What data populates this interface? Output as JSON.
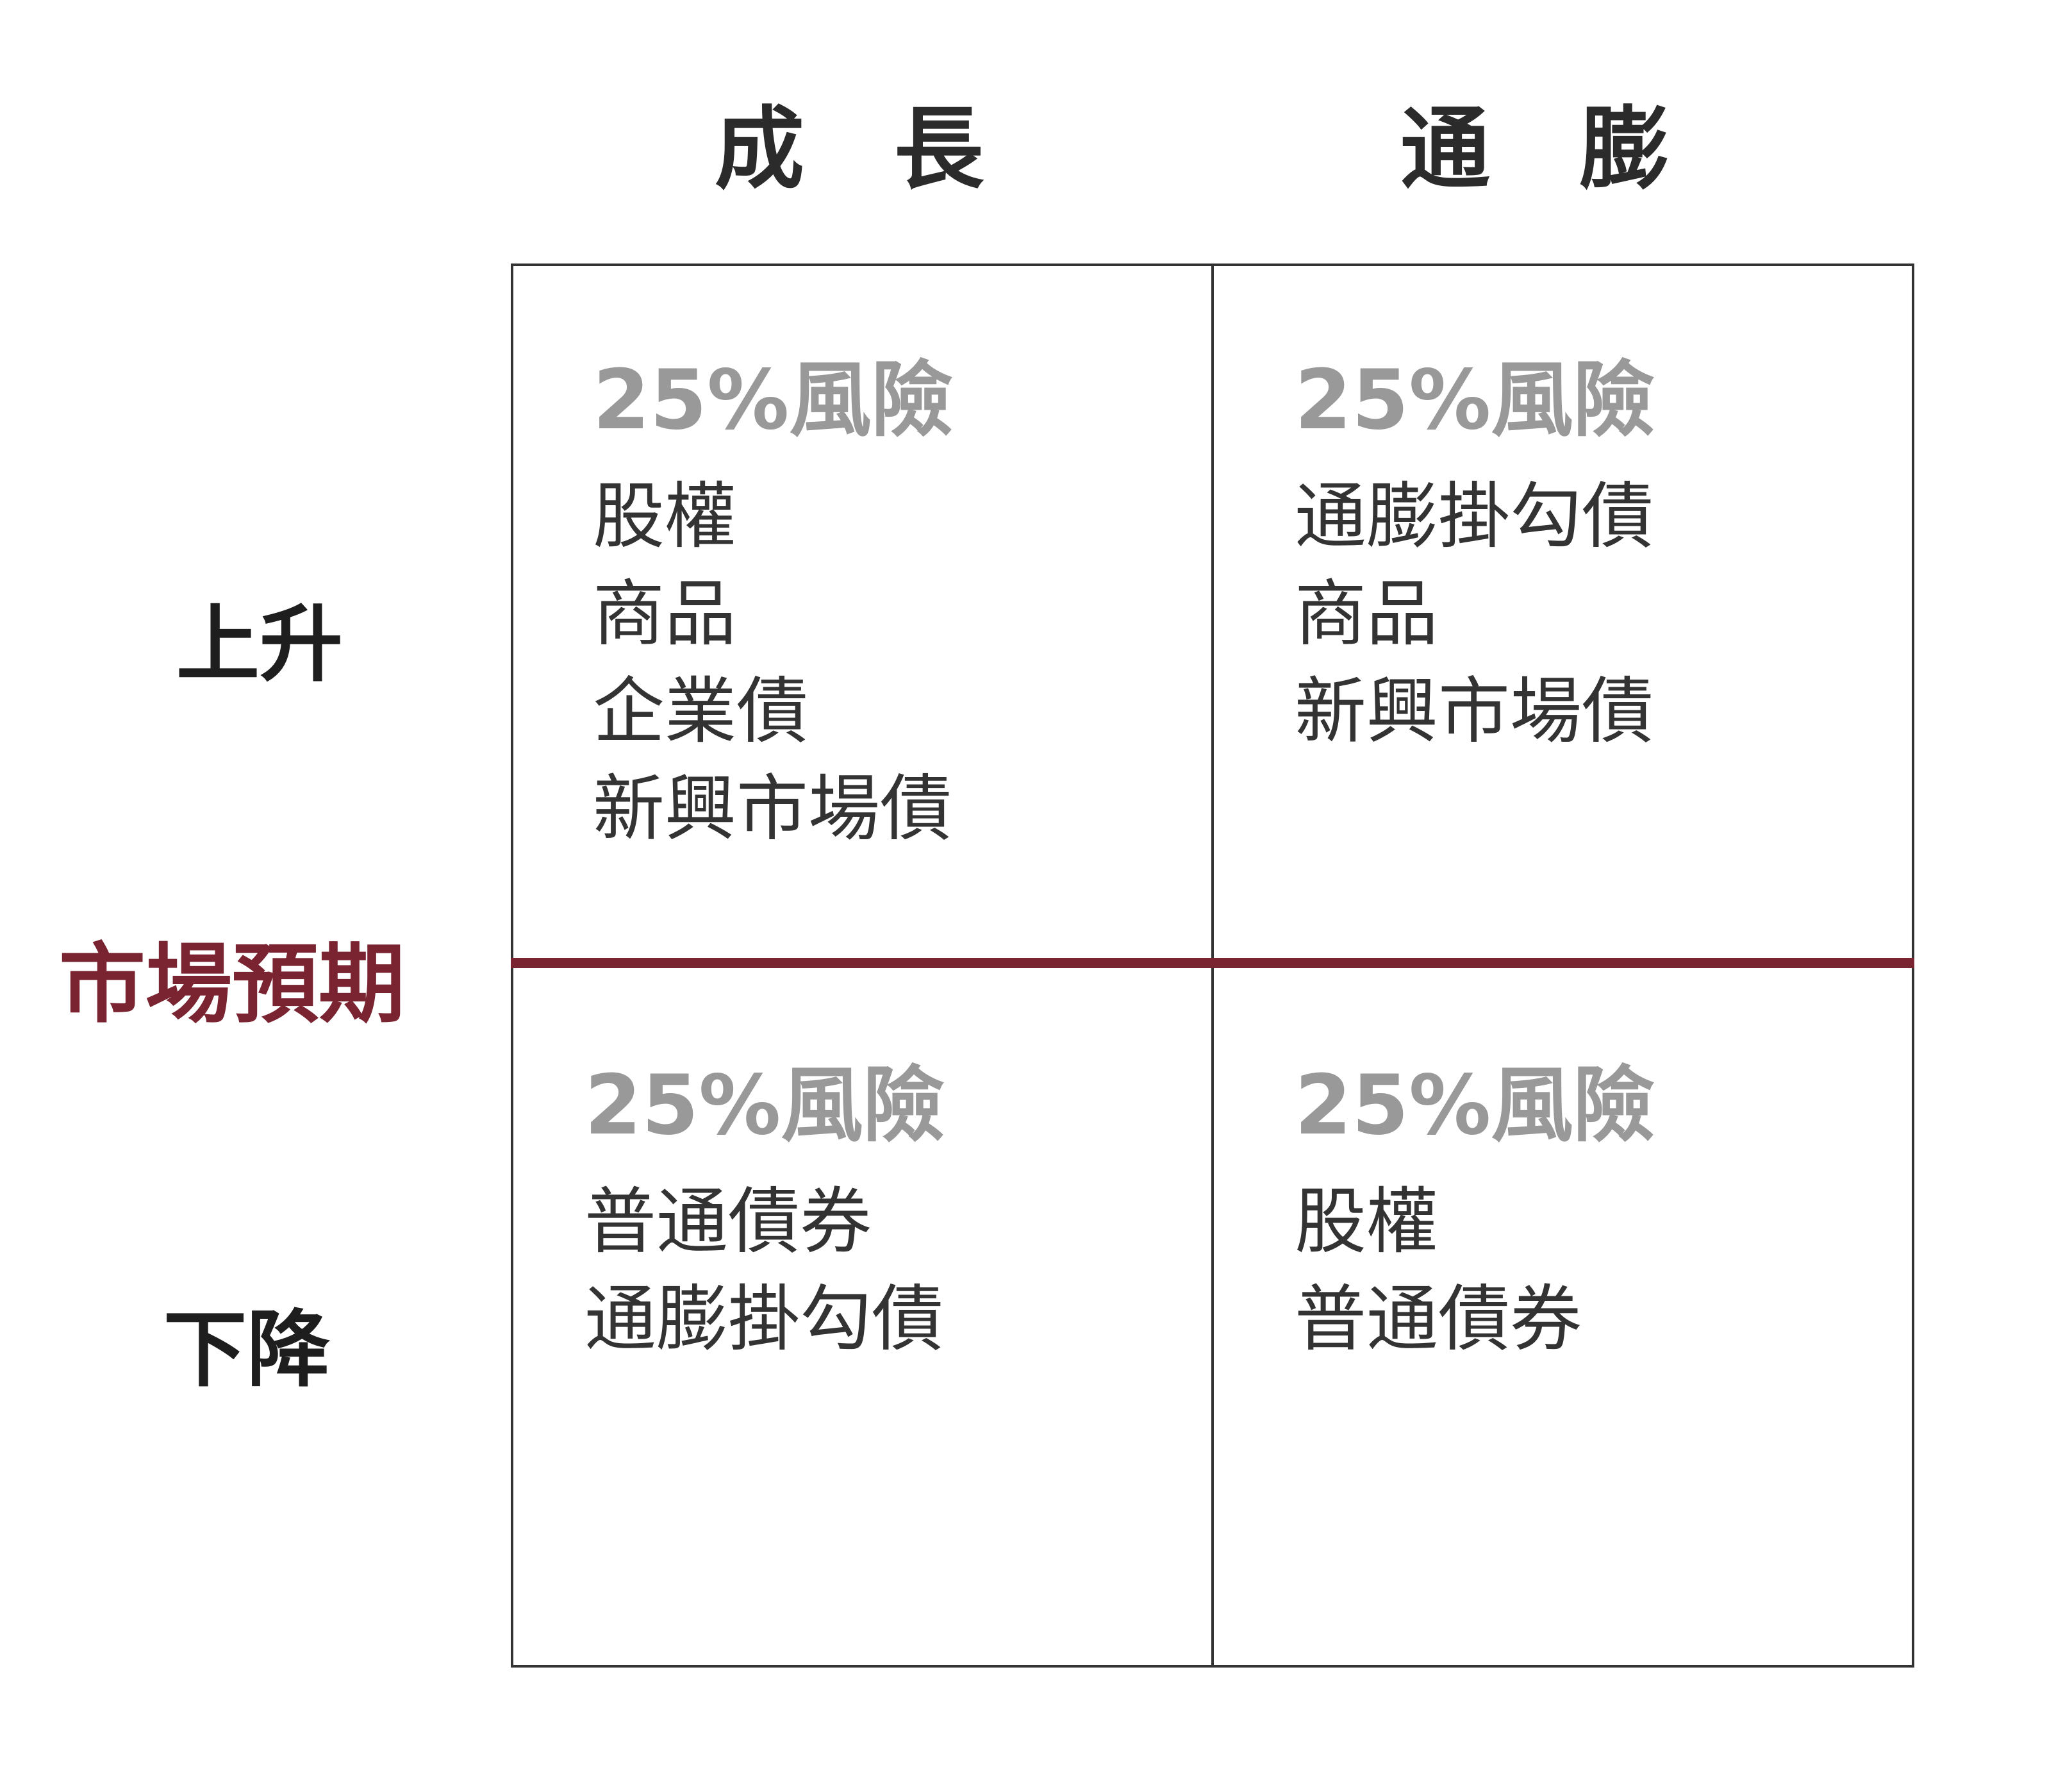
{
  "columns": [
    "成長",
    "通膨"
  ],
  "rows": [
    "上升",
    "下降"
  ],
  "axis_label": "市場預期",
  "colors": {
    "accent": "#7a2431",
    "risk_text": "#999999",
    "text": "#333333"
  },
  "cells": [
    {
      "risk": "25%風險",
      "items": [
        "股權",
        "商品",
        "企業債",
        "新興市場債"
      ]
    },
    {
      "risk": "25%風險",
      "items": [
        "通膨掛勾債",
        "商品",
        "新興市場債"
      ]
    },
    {
      "risk": "25%風險",
      "items": [
        "普通債券",
        "通膨掛勾債"
      ]
    },
    {
      "risk": "25%風險",
      "items": [
        "股權",
        "普通債券"
      ]
    }
  ]
}
